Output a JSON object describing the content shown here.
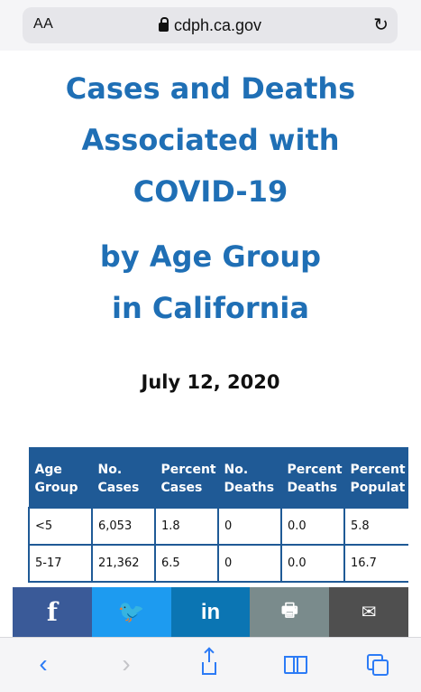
{
  "browser": {
    "text_size_label": "AA",
    "url": "cdph.ca.gov",
    "reload_icon": "↻"
  },
  "page": {
    "title_lines": [
      "Cases and Deaths",
      "Associated with",
      "COVID-19"
    ],
    "subtitle_lines": [
      "by Age Group",
      "in California"
    ],
    "date": "July 12, 2020"
  },
  "table": {
    "headers": [
      [
        "Age",
        "Group"
      ],
      [
        "No.",
        "Cases"
      ],
      [
        "Percent",
        "Cases"
      ],
      [
        "No.",
        "Deaths"
      ],
      [
        "Percent",
        "Deaths"
      ],
      [
        "Percent",
        "Populat"
      ]
    ],
    "rows": [
      [
        "<5",
        "6,053",
        "1.8",
        "0",
        "0.0",
        "5.8"
      ],
      [
        "5-17",
        "21,362",
        "6.5",
        "0",
        "0.0",
        "16.7"
      ]
    ]
  },
  "share_bar": {
    "facebook_icon": "f",
    "twitter_icon": "🐦",
    "linkedin_icon": "in",
    "print_icon": "🖶",
    "email_icon": "✉"
  },
  "toolbar": {
    "back_icon": "‹",
    "forward_icon": "›"
  }
}
